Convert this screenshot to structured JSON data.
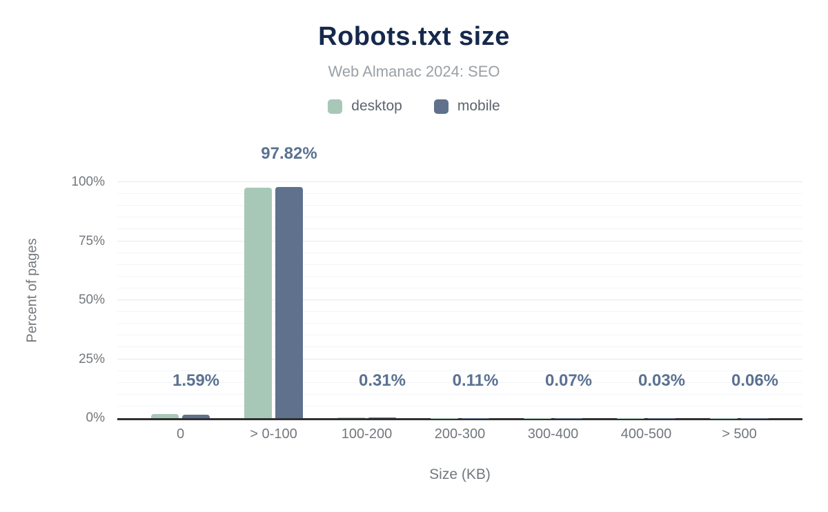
{
  "header": {
    "title": "Robots.txt size",
    "subtitle": "Web Almanac 2024: SEO"
  },
  "legend": {
    "items": [
      {
        "name": "desktop",
        "label": "desktop",
        "color": "#a7c8b7"
      },
      {
        "name": "mobile",
        "label": "mobile",
        "color": "#5f718c"
      }
    ]
  },
  "chart_data": {
    "type": "bar",
    "title": "Robots.txt size",
    "subtitle": "Web Almanac 2024: SEO",
    "categories": [
      "0",
      "> 0-100",
      "100-200",
      "200-300",
      "300-400",
      "400-500",
      "> 500"
    ],
    "series": [
      {
        "name": "desktop",
        "color": "#a7c8b7",
        "estimated": true,
        "values": [
          1.9,
          97.8,
          0.31,
          0.11,
          0.07,
          0.03,
          0.06
        ]
      },
      {
        "name": "mobile",
        "color": "#5f718c",
        "values": [
          1.59,
          97.82,
          0.31,
          0.11,
          0.07,
          0.03,
          0.06
        ]
      }
    ],
    "data_labels": [
      "1.59%",
      "97.82%",
      "0.31%",
      "0.11%",
      "0.07%",
      "0.03%",
      "0.06%"
    ],
    "data_labels_series": "mobile",
    "xlabel": "Size (KB)",
    "ylabel": "Percent of pages",
    "y_ticks": [
      {
        "label": "0%",
        "value": 0
      },
      {
        "label": "25%",
        "value": 25
      },
      {
        "label": "50%",
        "value": 50
      },
      {
        "label": "75%",
        "value": 75
      },
      {
        "label": "100%",
        "value": 100
      }
    ],
    "ylim": [
      0,
      100
    ],
    "grid": {
      "major_step": 25,
      "minor_step": 5
    },
    "legend_position": "top"
  },
  "colors": {
    "title": "#16294c",
    "subtitle": "#9aa0a6",
    "legend_text": "#5d646d",
    "desktop_bar": "#a7c8b7",
    "mobile_bar": "#5f718c",
    "data_label": "#5a7192",
    "tick_text": "#73777c",
    "axis_line": "#2f2f2f",
    "grid_major": "#e6e8ea",
    "grid_minor": "#f3f4f6",
    "background": "#ffffff"
  }
}
